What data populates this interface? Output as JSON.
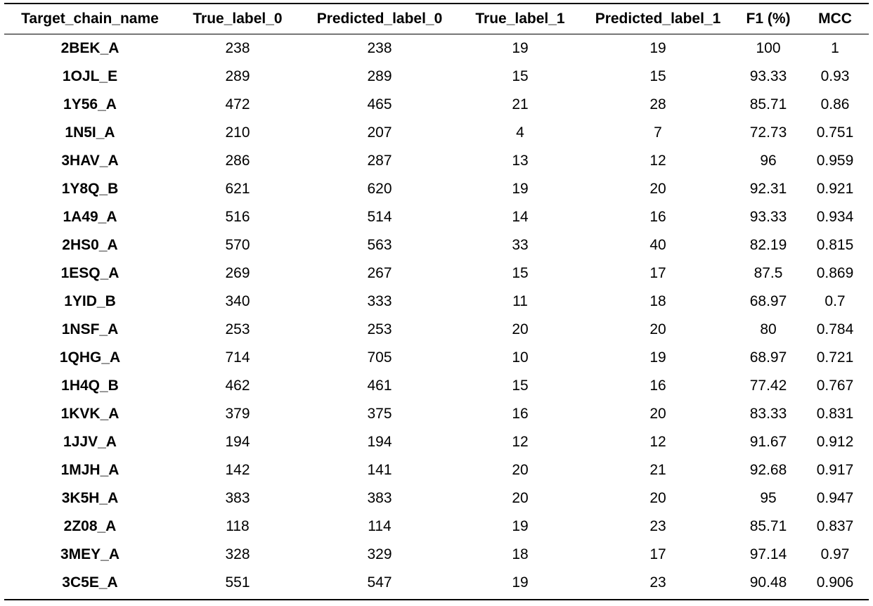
{
  "table": {
    "headers": [
      "Target_chain_name",
      "True_label_0",
      "Predicted_label_0",
      "True_label_1",
      "Predicted_label_1",
      "F1 (%)",
      "MCC"
    ],
    "rows": [
      [
        "2BEK_A",
        "238",
        "238",
        "19",
        "19",
        "100",
        "1"
      ],
      [
        "1OJL_E",
        "289",
        "289",
        "15",
        "15",
        "93.33",
        "0.93"
      ],
      [
        "1Y56_A",
        "472",
        "465",
        "21",
        "28",
        "85.71",
        "0.86"
      ],
      [
        "1N5I_A",
        "210",
        "207",
        "4",
        "7",
        "72.73",
        "0.751"
      ],
      [
        "3HAV_A",
        "286",
        "287",
        "13",
        "12",
        "96",
        "0.959"
      ],
      [
        "1Y8Q_B",
        "621",
        "620",
        "19",
        "20",
        "92.31",
        "0.921"
      ],
      [
        "1A49_A",
        "516",
        "514",
        "14",
        "16",
        "93.33",
        "0.934"
      ],
      [
        "2HS0_A",
        "570",
        "563",
        "33",
        "40",
        "82.19",
        "0.815"
      ],
      [
        "1ESQ_A",
        "269",
        "267",
        "15",
        "17",
        "87.5",
        "0.869"
      ],
      [
        "1YID_B",
        "340",
        "333",
        "11",
        "18",
        "68.97",
        "0.7"
      ],
      [
        "1NSF_A",
        "253",
        "253",
        "20",
        "20",
        "80",
        "0.784"
      ],
      [
        "1QHG_A",
        "714",
        "705",
        "10",
        "19",
        "68.97",
        "0.721"
      ],
      [
        "1H4Q_B",
        "462",
        "461",
        "15",
        "16",
        "77.42",
        "0.767"
      ],
      [
        "1KVK_A",
        "379",
        "375",
        "16",
        "20",
        "83.33",
        "0.831"
      ],
      [
        "1JJV_A",
        "194",
        "194",
        "12",
        "12",
        "91.67",
        "0.912"
      ],
      [
        "1MJH_A",
        "142",
        "141",
        "20",
        "21",
        "92.68",
        "0.917"
      ],
      [
        "3K5H_A",
        "383",
        "383",
        "20",
        "20",
        "95",
        "0.947"
      ],
      [
        "2Z08_A",
        "118",
        "114",
        "19",
        "23",
        "85.71",
        "0.837"
      ],
      [
        "3MEY_A",
        "328",
        "329",
        "18",
        "17",
        "97.14",
        "0.97"
      ],
      [
        "3C5E_A",
        "551",
        "547",
        "19",
        "23",
        "90.48",
        "0.906"
      ]
    ]
  }
}
